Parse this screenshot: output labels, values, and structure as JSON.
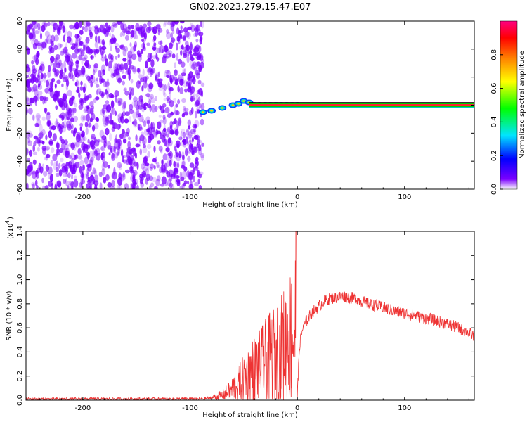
{
  "title": "GN02.2023.279.15.47.E07",
  "chart_data": [
    {
      "type": "heatmap",
      "title": "GN02.2023.279.15.47.E07",
      "xlabel": "Height of straight line (km)",
      "ylabel": "Frequency (Hz)",
      "xlim": [
        -253,
        165
      ],
      "ylim": [
        -60,
        60
      ],
      "x_ticks": [
        -200,
        -100,
        0,
        100
      ],
      "y_ticks": [
        -60,
        -40,
        -20,
        0,
        20,
        40,
        60
      ],
      "x_tick_labels": [
        "-200",
        "-100",
        "0",
        "100"
      ],
      "y_tick_labels": [
        "-60",
        "-40",
        "-20",
        "0",
        "20",
        "40",
        "60"
      ],
      "noise_region_x": [
        -253,
        -88
      ],
      "ridge_x": [
        -88,
        -80,
        -70,
        -60,
        -55,
        -50,
        -45,
        -40,
        -35,
        -30,
        -25,
        -20,
        -15,
        -10,
        -5,
        0
      ],
      "ridge_frequency": [
        -5,
        -4,
        -2,
        0,
        1,
        3,
        2,
        0,
        0,
        0,
        0,
        0,
        0,
        0,
        0,
        0
      ],
      "carrier_frequency": 0,
      "colorbar": {
        "label": "Normalized spectral amplitude",
        "range": [
          0,
          1
        ],
        "ticks": [
          0.0,
          0.2,
          0.4,
          0.6,
          0.8
        ],
        "tick_labels": [
          "0.0",
          "0.2",
          "0.4",
          "0.6",
          "0.8"
        ],
        "colormap": [
          "#ffffff",
          "#7b00ff",
          "#0000ff",
          "#00e5ff",
          "#00ff00",
          "#ffff00",
          "#ff8000",
          "#ff0000",
          "#ff0080"
        ]
      },
      "colors": {
        "noise": "#7b00ff",
        "carrier_core": "#ff2030",
        "carrier_edge": "#00c8c8"
      }
    },
    {
      "type": "line",
      "xlabel": "Height of straight line (km)",
      "ylabel": "SNR (10 * v/v)",
      "y_multiplier_label": "(x10",
      "y_multiplier_exp": "4",
      "xlim": [
        -253,
        165
      ],
      "ylim": [
        0,
        1.4
      ],
      "x_ticks": [
        -200,
        -100,
        0,
        100
      ],
      "y_ticks": [
        0.0,
        0.2,
        0.4,
        0.6,
        0.8,
        1.0,
        1.2,
        1.4
      ],
      "x_tick_labels": [
        "-200",
        "-100",
        "0",
        "100"
      ],
      "y_tick_labels": [
        "0.0",
        "0.2",
        "0.4",
        "0.6",
        "0.8",
        "1.0",
        "1.2",
        "1.4"
      ],
      "series": [
        {
          "color": "#ee3333",
          "x": [
            -253,
            -200,
            -150,
            -100,
            -90,
            -80,
            -70,
            -62,
            -58,
            -55,
            -50,
            -45,
            -40,
            -35,
            -30,
            -25,
            -20,
            -15,
            -10,
            -5,
            -2,
            -1,
            0,
            2,
            5,
            10,
            15,
            20,
            25,
            30,
            35,
            40,
            45,
            50,
            55,
            60,
            70,
            80,
            90,
            100,
            110,
            120,
            130,
            140,
            150,
            160,
            165
          ],
          "y": [
            0.01,
            0.01,
            0.01,
            0.01,
            0.01,
            0.02,
            0.04,
            0.08,
            0.12,
            0.14,
            0.18,
            0.22,
            0.26,
            0.28,
            0.32,
            0.35,
            0.4,
            0.42,
            0.48,
            0.55,
            0.6,
            1.4,
            0.03,
            0.45,
            0.6,
            0.68,
            0.74,
            0.78,
            0.82,
            0.84,
            0.85,
            0.86,
            0.86,
            0.85,
            0.84,
            0.82,
            0.79,
            0.77,
            0.74,
            0.72,
            0.7,
            0.68,
            0.66,
            0.63,
            0.6,
            0.56,
            0.53
          ]
        }
      ]
    }
  ]
}
